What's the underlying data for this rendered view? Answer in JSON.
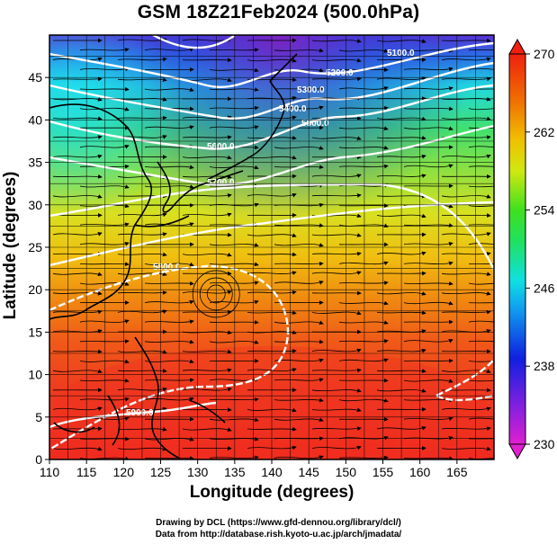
{
  "title": "GSM 18Z21Feb2024 (500.0hPa)",
  "x_axis": {
    "label": "Longitude (degrees)",
    "range": [
      110,
      170
    ],
    "ticks": [
      "110",
      "115",
      "120",
      "125",
      "130",
      "135",
      "140",
      "145",
      "150",
      "155",
      "160",
      "165"
    ]
  },
  "y_axis": {
    "label": "Latitude  (degrees)",
    "range": [
      0,
      50
    ],
    "ticks": [
      "0",
      "5",
      "10",
      "15",
      "20",
      "25",
      "30",
      "35",
      "40",
      "45"
    ]
  },
  "colorbar": {
    "range": [
      230,
      270
    ],
    "ticks": [
      "230",
      "238",
      "246",
      "254",
      "262",
      "270"
    ],
    "colors": [
      "#e020d0",
      "#8020e0",
      "#1020e0",
      "#10b0f0",
      "#10e8c0",
      "#30e030",
      "#a0e020",
      "#f0f000",
      "#f0a000",
      "#f04000",
      "#f02010"
    ]
  },
  "contours": {
    "color": "#ffffff",
    "labels": [
      "5100.0",
      "5200.0",
      "5300.0",
      "5400.0",
      "5500.0",
      "5600.0",
      "5700.0",
      "5800.0",
      "5900.0"
    ]
  },
  "credits": {
    "line1": "Drawing by DCL (https://www.gfd-dennou.org/library/dcl/)",
    "line2": "Data from http://database.rish.kyoto-u.ac.jp/arch/jmadata/"
  }
}
